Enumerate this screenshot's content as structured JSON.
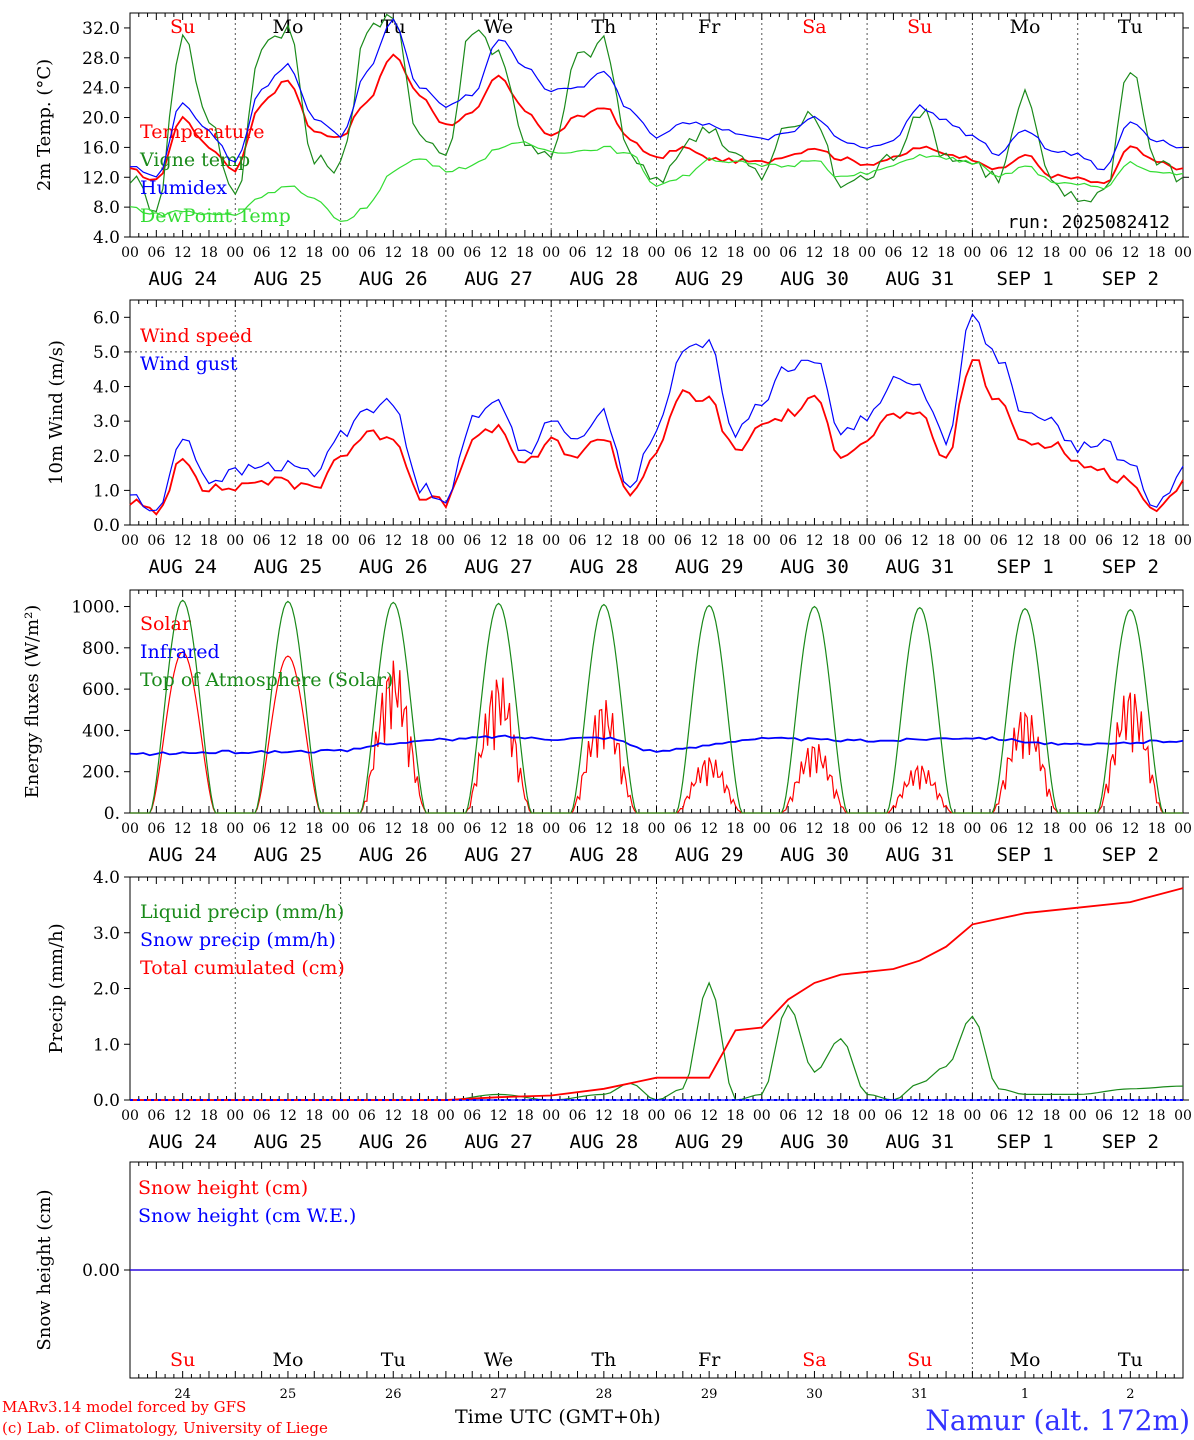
{
  "colors": {
    "red": "#ff0000",
    "green": "#1a8a1a",
    "blue": "#0000ff",
    "lightgreen": "#33dd33",
    "axis": "#000000",
    "dayred": "#ff0000"
  },
  "x_axis": {
    "hour_labels": [
      "00",
      "06",
      "12",
      "18"
    ],
    "date_labels": [
      "AUG 24",
      "AUG 25",
      "AUG 26",
      "AUG 27",
      "AUG 28",
      "AUG 29",
      "AUG 30",
      "AUG 31",
      "SEP  1",
      "SEP  2"
    ],
    "weekdays": [
      "Su",
      "Mo",
      "Tu",
      "We",
      "Th",
      "Fr",
      "Sa",
      "Su",
      "Mo",
      "Tu"
    ],
    "weekday_colors": [
      "red",
      "black",
      "black",
      "black",
      "black",
      "black",
      "red",
      "red",
      "black",
      "black"
    ],
    "day_numbers": [
      "24",
      "25",
      "26",
      "27",
      "28",
      "29",
      "30",
      "31",
      "1",
      "2"
    ]
  },
  "footer": {
    "credit_line1": "MARv3.14 model forced by GFS",
    "credit_line2": "(c) Lab. of Climatology, University of Liege",
    "time_label": "Time UTC (GMT+0h)",
    "station": "Namur (alt. 172m)"
  },
  "chart_data": [
    {
      "type": "line",
      "ylabel": "2m Temp. (°C)",
      "ylim": [
        4,
        34
      ],
      "yticks": [
        "4.0",
        "8.0",
        "12.0",
        "16.0",
        "20.0",
        "24.0",
        "28.0",
        "32.0"
      ],
      "annotation": "run: 2025082412",
      "series": [
        {
          "name": "Temperature",
          "color": "red",
          "x_hours": [
            0,
            6,
            12,
            18,
            24,
            30,
            36,
            42,
            48,
            54,
            60,
            66,
            72,
            78,
            84,
            90,
            96,
            102,
            108,
            114,
            120,
            126,
            132,
            138,
            144,
            150,
            156,
            162,
            168,
            174,
            180,
            186,
            192,
            198,
            204,
            210,
            216,
            222,
            228,
            234,
            240
          ],
          "values": [
            13,
            11.5,
            20,
            16,
            13,
            22,
            25,
            18,
            17.5,
            22,
            28.5,
            23,
            19,
            20.5,
            25.5,
            21,
            17.5,
            20,
            21.5,
            17,
            14.5,
            16,
            14.5,
            14.2,
            14,
            15,
            16,
            14.5,
            13.8,
            14.5,
            16,
            15.2,
            14.5,
            13,
            15,
            12.2,
            11.8,
            11,
            16,
            14,
            13.2
          ]
        },
        {
          "name": "Vigne temp",
          "color": "green",
          "x_hours": [
            0,
            6,
            12,
            18,
            24,
            30,
            36,
            42,
            48,
            54,
            60,
            66,
            72,
            78,
            84,
            90,
            96,
            102,
            108,
            114,
            120,
            126,
            132,
            138,
            144,
            150,
            156,
            162,
            168,
            174,
            180,
            186,
            192,
            198,
            204,
            210,
            216,
            222,
            228,
            234,
            240
          ],
          "values": [
            12,
            8,
            31,
            20,
            9,
            30,
            32,
            14,
            13.5,
            32,
            33,
            18,
            15,
            32,
            29,
            17,
            14.5,
            28,
            30,
            15,
            11,
            16,
            19,
            15,
            12,
            19,
            20,
            11,
            12,
            15,
            21,
            15,
            14,
            12,
            23,
            11,
            9,
            10,
            27,
            14,
            12
          ]
        },
        {
          "name": "Humidex",
          "color": "blue",
          "x_hours": [
            0,
            6,
            12,
            18,
            24,
            30,
            36,
            42,
            48,
            54,
            60,
            66,
            72,
            78,
            84,
            90,
            96,
            102,
            108,
            114,
            120,
            126,
            132,
            138,
            144,
            150,
            156,
            162,
            168,
            174,
            180,
            186,
            192,
            198,
            204,
            210,
            216,
            222,
            228,
            234,
            240
          ],
          "values": [
            13.5,
            12,
            22,
            18,
            14,
            24,
            27,
            20,
            17.5,
            26,
            33,
            24,
            21.5,
            23,
            30.5,
            27,
            23.5,
            24,
            26,
            21,
            17.5,
            19.5,
            19,
            18,
            17,
            18,
            20,
            17,
            16,
            17,
            21.5,
            19.5,
            17.5,
            15,
            18.5,
            15.5,
            15,
            13,
            19.5,
            17,
            16
          ]
        },
        {
          "name": "DewPoint Temp",
          "color": "lightgreen",
          "x_hours": [
            0,
            6,
            12,
            18,
            24,
            30,
            36,
            42,
            48,
            54,
            60,
            66,
            72,
            78,
            84,
            90,
            96,
            102,
            108,
            114,
            120,
            126,
            132,
            138,
            144,
            150,
            156,
            162,
            168,
            174,
            180,
            186,
            192,
            198,
            204,
            210,
            216,
            222,
            228,
            234,
            240
          ],
          "values": [
            8,
            7,
            7.5,
            7,
            7,
            9.5,
            11,
            9,
            6,
            8,
            13,
            14.5,
            13,
            13.5,
            16,
            16.5,
            15.5,
            15.5,
            16,
            15,
            11,
            12,
            14.5,
            14,
            13.5,
            13.5,
            14.5,
            12,
            12.5,
            13.5,
            15,
            14.5,
            14,
            12,
            13.5,
            11.5,
            11,
            10.5,
            14,
            12.5,
            12.5
          ]
        }
      ]
    },
    {
      "type": "line",
      "ylabel": "10m Wind (m/s)",
      "ylim": [
        0,
        6.5
      ],
      "yticks": [
        "0.0",
        "1.0",
        "2.0",
        "3.0",
        "4.0",
        "5.0",
        "6.0"
      ],
      "ref_line": 5.0,
      "series": [
        {
          "name": "Wind speed",
          "color": "red",
          "x_hours": [
            0,
            6,
            12,
            18,
            24,
            30,
            36,
            42,
            48,
            54,
            60,
            66,
            72,
            78,
            84,
            90,
            96,
            102,
            108,
            114,
            120,
            126,
            132,
            138,
            144,
            150,
            156,
            162,
            168,
            174,
            180,
            186,
            192,
            198,
            204,
            210,
            216,
            222,
            228,
            234,
            240
          ],
          "values": [
            0.7,
            0.3,
            2.0,
            1.0,
            1.1,
            1.3,
            1.2,
            1.1,
            2.0,
            2.6,
            2.6,
            0.9,
            0.6,
            2.4,
            2.8,
            1.7,
            2.4,
            2.0,
            2.6,
            0.9,
            2.1,
            3.8,
            3.6,
            2.1,
            2.9,
            3.2,
            3.6,
            2.1,
            2.5,
            3.2,
            3.1,
            1.9,
            4.8,
            3.5,
            2.4,
            2.4,
            1.8,
            1.5,
            1.3,
            0.3,
            1.3
          ]
        },
        {
          "name": "Wind gust",
          "color": "blue",
          "x_hours": [
            0,
            6,
            12,
            18,
            24,
            30,
            36,
            42,
            48,
            54,
            60,
            66,
            72,
            78,
            84,
            90,
            96,
            102,
            108,
            114,
            120,
            126,
            132,
            138,
            144,
            150,
            156,
            162,
            168,
            174,
            180,
            186,
            192,
            198,
            204,
            210,
            216,
            222,
            228,
            234,
            240
          ],
          "values": [
            0.9,
            0.3,
            2.6,
            1.3,
            1.5,
            1.7,
            1.7,
            1.5,
            2.6,
            3.4,
            3.5,
            1.1,
            0.8,
            3.0,
            3.6,
            2.1,
            2.9,
            2.6,
            3.2,
            1.1,
            2.7,
            5.0,
            5.3,
            2.6,
            3.6,
            4.6,
            4.8,
            2.7,
            3.1,
            4.2,
            4.0,
            2.5,
            6.0,
            4.8,
            3.1,
            3.0,
            2.2,
            2.4,
            1.7,
            0.5,
            1.7
          ]
        }
      ]
    },
    {
      "type": "line",
      "ylabel": "Energy fluxes (W/m²)",
      "ylim": [
        0,
        1080
      ],
      "yticks": [
        "0.",
        "200.",
        "400.",
        "600.",
        "800.",
        "1000."
      ],
      "series": [
        {
          "name": "Solar",
          "color": "red",
          "peaks": [
            780,
            760,
            750,
            680,
            560,
            280,
            350,
            240,
            520,
            620
          ]
        },
        {
          "name": "Infrared",
          "color": "blue",
          "x_hours": [
            0,
            24,
            48,
            60,
            72,
            84,
            96,
            108,
            120,
            144,
            168,
            192,
            216,
            240
          ],
          "values": [
            285,
            295,
            300,
            340,
            355,
            370,
            360,
            365,
            300,
            360,
            350,
            365,
            330,
            350
          ]
        },
        {
          "name": "Top of Atmosphere (Solar)",
          "color": "green",
          "peaks": [
            1030,
            1025,
            1020,
            1015,
            1010,
            1005,
            1000,
            995,
            990,
            985
          ]
        }
      ]
    },
    {
      "type": "line",
      "ylabel": "Precip (mm/h)",
      "ylim": [
        0,
        4
      ],
      "yticks": [
        "0.0",
        "1.0",
        "2.0",
        "3.0",
        "4.0"
      ],
      "series": [
        {
          "name": "Liquid precip (mm/h)",
          "color": "green",
          "x_hours": [
            0,
            72,
            84,
            96,
            108,
            114,
            120,
            126,
            132,
            138,
            144,
            150,
            156,
            162,
            168,
            174,
            180,
            186,
            192,
            198,
            204,
            216,
            228,
            240
          ],
          "values": [
            0,
            0,
            0.1,
            0,
            0.1,
            0.3,
            0,
            0.2,
            2.1,
            0,
            0.1,
            1.7,
            0.5,
            1.1,
            0.1,
            0,
            0.3,
            0.6,
            1.5,
            0.2,
            0.1,
            0.1,
            0.2,
            0.25
          ]
        },
        {
          "name": "Snow precip (mm/h)",
          "color": "blue",
          "x_hours": [
            0,
            240
          ],
          "values": [
            0,
            0
          ]
        },
        {
          "name": "Total cumulated (cm)",
          "color": "red",
          "x_hours": [
            0,
            72,
            84,
            96,
            108,
            120,
            132,
            138,
            144,
            150,
            156,
            162,
            168,
            174,
            180,
            186,
            192,
            198,
            204,
            216,
            228,
            240
          ],
          "values": [
            0,
            0,
            0.05,
            0.08,
            0.2,
            0.4,
            0.4,
            1.25,
            1.3,
            1.8,
            2.1,
            2.25,
            2.3,
            2.35,
            2.5,
            2.75,
            3.15,
            3.25,
            3.35,
            3.45,
            3.55,
            3.8
          ]
        }
      ]
    },
    {
      "type": "line",
      "ylabel": "Snow height (cm)",
      "yticks": [
        "0.00"
      ],
      "series": [
        {
          "name": "Snow height (cm)",
          "color": "red",
          "x_hours": [
            0,
            240
          ],
          "values": [
            0,
            0
          ]
        },
        {
          "name": "Snow height (cm W.E.)",
          "color": "blue",
          "x_hours": [
            0,
            240
          ],
          "values": [
            0,
            0
          ]
        }
      ]
    }
  ]
}
